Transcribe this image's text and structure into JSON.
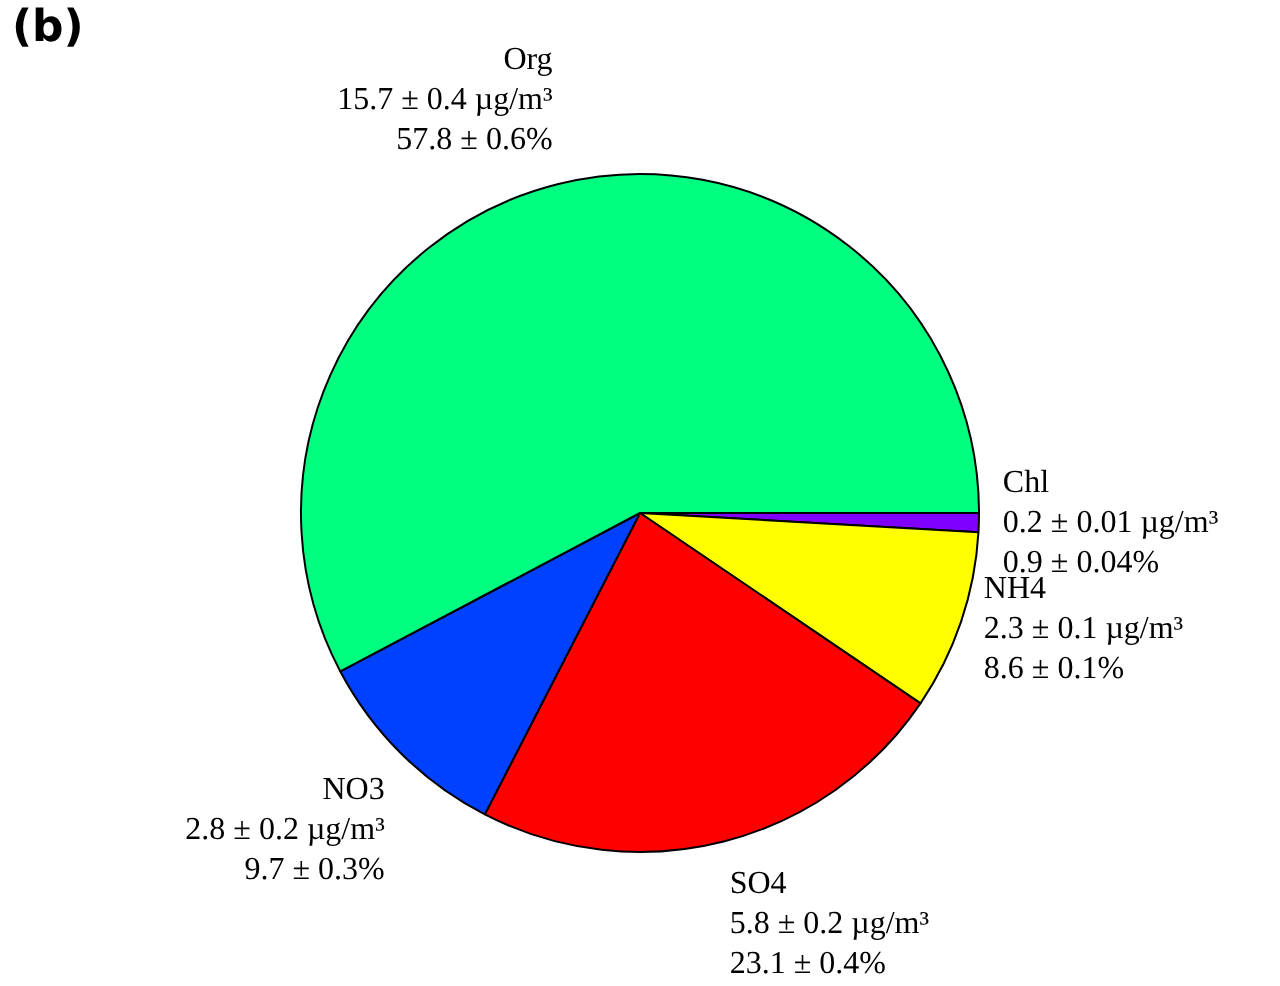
{
  "chart_data": {
    "type": "pie",
    "title": "(b)",
    "categories": [
      "Chl",
      "NH4",
      "SO4",
      "NO3",
      "Org"
    ],
    "values": [
      0.9,
      8.6,
      23.1,
      9.7,
      57.8
    ],
    "colors": [
      "#8000ff",
      "#ffff00",
      "#ff0000",
      "#0040ff",
      "#00ff80"
    ],
    "value_labels": [
      "0.2 ± 0.01 µg/m³\n0.9 ± 0.04%",
      "2.3 ± 0.1 µg/m³\n8.6 ± 0.1%",
      "5.8 ± 0.2 µg/m³\n23.1 ± 0.4%",
      "2.8 ± 0.2 µg/m³\n9.7 ± 0.3%",
      "15.7 ± 0.4 µg/m³\n57.8 ± 0.6%"
    ],
    "legend": false
  }
}
